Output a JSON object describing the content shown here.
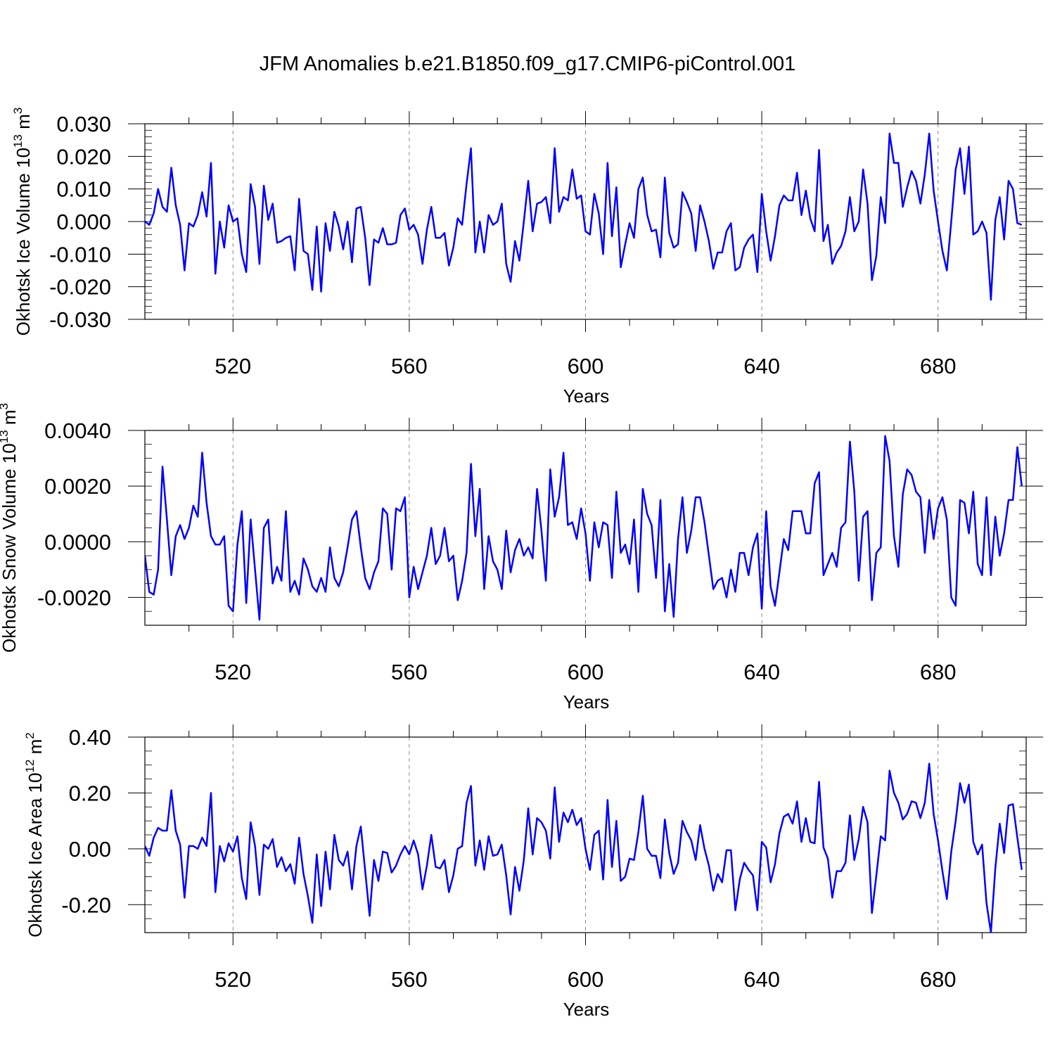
{
  "title": "JFM Anomalies b.e21.B1850.f09_g17.CMIP6-piControl.001",
  "colors": {
    "line": "#0000ff",
    "frame": "#000000",
    "grid": "#888888"
  },
  "chart_data": [
    {
      "type": "line",
      "ylabel": "Okhotsk Ice Volume 10",
      "ylabel_sup": "13",
      "ylabel_unit": " m",
      "ylabel_unit_sup": "3",
      "xlabel": "Years",
      "xlim": [
        500,
        700
      ],
      "ylim": [
        -0.03,
        0.03
      ],
      "xticks": [
        520,
        560,
        600,
        640,
        680
      ],
      "xtick_labels": [
        "520",
        "560",
        "600",
        "640",
        "680"
      ],
      "yticks": [
        -0.03,
        -0.02,
        -0.01,
        0.0,
        0.01,
        0.02,
        0.03
      ],
      "ytick_labels": [
        "-0.030",
        "-0.020",
        "-0.010",
        "0.000",
        "0.010",
        "0.020",
        "0.030"
      ],
      "ystep": 0.002,
      "series": [
        {
          "x_start": 500,
          "x_step": 1,
          "values": [
            0.0,
            -0.001,
            0.0025,
            0.01,
            0.0045,
            0.003,
            0.0165,
            0.005,
            -0.001,
            -0.015,
            -0.0005,
            -0.0015,
            0.002,
            0.009,
            0.0015,
            0.018,
            -0.016,
            0.0,
            -0.008,
            0.005,
            0.0,
            0.001,
            -0.01,
            -0.0155,
            0.0115,
            0.0045,
            -0.013,
            0.011,
            0.0005,
            0.0055,
            -0.0065,
            -0.006,
            -0.005,
            -0.0045,
            -0.015,
            0.007,
            -0.009,
            -0.01,
            -0.021,
            -0.0015,
            -0.0215,
            -0.0005,
            -0.009,
            0.003,
            -0.0015,
            -0.0085,
            0.0,
            -0.0125,
            0.004,
            0.0045,
            -0.005,
            -0.0195,
            -0.0055,
            -0.0065,
            -0.002,
            -0.007,
            -0.007,
            -0.0065,
            0.002,
            0.004,
            -0.0025,
            -0.001,
            -0.004,
            -0.013,
            -0.0025,
            0.0045,
            -0.005,
            -0.005,
            -0.0035,
            -0.0135,
            -0.008,
            0.001,
            -0.001,
            0.0115,
            0.0225,
            -0.0095,
            0.0,
            -0.0095,
            0.002,
            -0.001,
            0.0,
            0.0055,
            -0.013,
            -0.0185,
            -0.006,
            -0.012,
            0.0,
            0.0125,
            -0.003,
            0.0055,
            0.006,
            0.0075,
            -0.0005,
            0.0225,
            0.003,
            0.0075,
            0.0065,
            0.016,
            0.007,
            0.008,
            -0.003,
            -0.004,
            0.0085,
            0.0025,
            -0.01,
            0.018,
            -0.0045,
            0.0105,
            -0.014,
            -0.007,
            -0.0005,
            -0.005,
            0.01,
            0.0135,
            0.002,
            -0.003,
            -0.0025,
            -0.011,
            0.0135,
            -0.0035,
            -0.008,
            -0.007,
            0.009,
            0.006,
            0.0025,
            -0.009,
            0.005,
            0.0,
            -0.006,
            -0.0145,
            -0.0095,
            -0.0095,
            -0.003,
            -0.0005,
            -0.015,
            -0.014,
            -0.008,
            -0.0055,
            -0.004,
            -0.0155,
            0.0085,
            -0.003,
            -0.012,
            -0.0045,
            0.005,
            0.008,
            0.0065,
            0.0065,
            0.015,
            0.002,
            0.0095,
            0.001,
            -0.003,
            0.022,
            -0.006,
            -0.001,
            -0.013,
            -0.0095,
            -0.0075,
            -0.003,
            0.0075,
            -0.003,
            0.0,
            0.016,
            0.0055,
            -0.018,
            -0.0105,
            0.0075,
            -0.0005,
            0.027,
            0.018,
            0.018,
            0.0045,
            0.0105,
            0.0155,
            0.0125,
            0.0055,
            0.0145,
            0.027,
            0.0095,
            0.0,
            -0.009,
            -0.015,
            0.0,
            0.016,
            0.0225,
            0.0085,
            0.023,
            -0.004,
            -0.003,
            0.0,
            -0.0035,
            -0.024,
            0.0005,
            0.0075,
            -0.0055,
            0.0125,
            0.01,
            -0.0005,
            -0.001
          ]
        }
      ]
    },
    {
      "type": "line",
      "ylabel": "Okhotsk Snow Volume 10",
      "ylabel_sup": "13",
      "ylabel_unit": " m",
      "ylabel_unit_sup": "3",
      "xlabel": "Years",
      "xlim": [
        500,
        700
      ],
      "ylim": [
        -0.003,
        0.004
      ],
      "xticks": [
        520,
        560,
        600,
        640,
        680
      ],
      "xtick_labels": [
        "520",
        "560",
        "600",
        "640",
        "680"
      ],
      "yticks": [
        -0.002,
        0.0,
        0.002,
        0.004
      ],
      "ytick_labels": [
        "-0.0020",
        "0.0000",
        "0.0020",
        "0.0040"
      ],
      "ystep": 0.0005,
      "series": [
        {
          "x_start": 500,
          "x_step": 1,
          "values": [
            -0.0005,
            -0.0018,
            -0.0019,
            -0.001,
            0.0027,
            0.0008,
            -0.0012,
            0.0002,
            0.0006,
            0.0001,
            0.0005,
            0.0013,
            0.0009,
            0.0032,
            0.0014,
            0.0002,
            -0.0001,
            -0.0001,
            0.0002,
            -0.0023,
            -0.0025,
            -0.0001,
            0.0011,
            -0.0022,
            0.0008,
            -0.001,
            -0.0028,
            0.0005,
            0.0008,
            -0.0015,
            -0.0009,
            -0.0014,
            0.0011,
            -0.0018,
            -0.0014,
            -0.0019,
            -0.0006,
            -0.001,
            -0.0016,
            -0.0018,
            -0.0013,
            -0.0018,
            -0.0002,
            -0.0013,
            -0.0016,
            -0.0011,
            -0.0002,
            0.0008,
            0.0011,
            -0.0002,
            -0.0013,
            -0.0017,
            -0.0011,
            -0.0007,
            0.0012,
            0.001,
            -0.001,
            0.0012,
            0.0011,
            0.0016,
            -0.002,
            -0.0009,
            -0.0017,
            -0.0011,
            -0.0005,
            0.0005,
            -0.0008,
            -0.0005,
            0.0005,
            -0.0007,
            -0.0005,
            -0.0021,
            -0.0014,
            -0.0004,
            0.0028,
            0.0002,
            0.0019,
            -0.0017,
            0.0002,
            -0.0007,
            -0.001,
            -0.0017,
            0.0004,
            -0.0011,
            -0.0003,
            0.0001,
            -0.0005,
            -0.0002,
            -0.0006,
            0.0019,
            0.0004,
            -0.0014,
            0.0026,
            0.0009,
            0.0016,
            0.0032,
            0.0006,
            0.0007,
            0.0001,
            0.0012,
            0.0003,
            -0.0014,
            0.0007,
            -0.0002,
            0.0007,
            0.0006,
            -0.0013,
            0.0018,
            -0.0004,
            -0.0001,
            -0.0008,
            0.0008,
            -0.0018,
            0.0019,
            0.001,
            0.0006,
            -0.0013,
            0.0015,
            -0.0025,
            -0.0008,
            -0.0027,
            0.0001,
            0.0016,
            -0.0004,
            0.0004,
            0.0016,
            0.0016,
            0.0007,
            -0.0005,
            -0.0017,
            -0.0014,
            -0.0013,
            -0.002,
            -0.001,
            -0.0018,
            -0.0004,
            -0.0004,
            -0.0012,
            -0.0002,
            0.0003,
            -0.0024,
            0.0011,
            -0.0016,
            -0.0023,
            -0.0011,
            0.0001,
            -0.0003,
            0.0011,
            0.0011,
            0.0011,
            0.0003,
            0.0003,
            0.0021,
            0.0025,
            -0.0012,
            -0.0008,
            -0.0004,
            -0.0009,
            0.0005,
            0.0007,
            0.0036,
            0.0018,
            -0.0014,
            0.0009,
            0.0011,
            -0.0021,
            -0.0004,
            -0.0002,
            0.0038,
            0.0029,
            0.0002,
            -0.0009,
            0.0017,
            0.0026,
            0.0024,
            0.0018,
            0.0016,
            -0.0004,
            0.0015,
            0.0001,
            0.0012,
            0.0016,
            0.0008,
            -0.002,
            -0.0023,
            0.0015,
            0.0014,
            0.0003,
            0.0018,
            -0.0008,
            -0.0012,
            0.0016,
            -0.0012,
            0.0009,
            -0.0005,
            0.0003,
            0.0015,
            0.0015,
            0.0034,
            0.002
          ]
        }
      ]
    },
    {
      "type": "line",
      "ylabel": "Okhotsk Ice Area 10",
      "ylabel_sup": "12",
      "ylabel_unit": " m",
      "ylabel_unit_sup": "2",
      "xlabel": "Years",
      "xlim": [
        500,
        700
      ],
      "ylim": [
        -0.3,
        0.4
      ],
      "xticks": [
        520,
        560,
        600,
        640,
        680
      ],
      "xtick_labels": [
        "520",
        "560",
        "600",
        "640",
        "680"
      ],
      "yticks": [
        -0.2,
        0.0,
        0.2,
        0.4
      ],
      "ytick_labels": [
        "-0.20",
        "0.00",
        "0.20",
        "0.40"
      ],
      "ystep": 0.05,
      "series": [
        {
          "x_start": 500,
          "x_step": 1,
          "values": [
            0.01,
            -0.025,
            0.04,
            0.075,
            0.065,
            0.065,
            0.21,
            0.065,
            0.015,
            -0.175,
            0.01,
            0.01,
            0.0,
            0.04,
            0.01,
            0.2,
            -0.155,
            0.01,
            -0.045,
            0.02,
            -0.01,
            0.045,
            -0.105,
            -0.18,
            0.095,
            0.01,
            -0.165,
            0.015,
            0.0,
            0.035,
            -0.065,
            -0.03,
            -0.08,
            -0.055,
            -0.125,
            0.04,
            -0.09,
            -0.17,
            -0.265,
            -0.02,
            -0.205,
            -0.01,
            -0.145,
            0.05,
            -0.04,
            -0.06,
            -0.01,
            -0.145,
            0.01,
            0.08,
            -0.08,
            -0.24,
            -0.04,
            -0.115,
            -0.01,
            -0.015,
            -0.085,
            -0.06,
            -0.02,
            0.01,
            -0.02,
            0.03,
            -0.02,
            -0.145,
            -0.06,
            0.05,
            -0.065,
            -0.07,
            -0.04,
            -0.155,
            -0.095,
            0.0,
            0.01,
            0.165,
            0.225,
            -0.06,
            0.03,
            -0.075,
            0.045,
            -0.025,
            -0.02,
            0.015,
            -0.095,
            -0.235,
            -0.065,
            -0.15,
            -0.04,
            0.145,
            -0.02,
            0.11,
            0.095,
            0.065,
            -0.035,
            0.22,
            0.025,
            0.13,
            0.095,
            0.14,
            0.085,
            0.11,
            0.0,
            -0.075,
            0.05,
            0.065,
            -0.11,
            0.175,
            -0.065,
            0.1,
            -0.115,
            -0.1,
            -0.035,
            -0.04,
            0.06,
            0.19,
            0.0,
            -0.025,
            -0.025,
            -0.105,
            0.105,
            -0.015,
            -0.09,
            -0.05,
            0.1,
            0.06,
            0.03,
            -0.04,
            0.085,
            0.0,
            -0.06,
            -0.15,
            -0.09,
            -0.12,
            -0.005,
            -0.005,
            -0.22,
            -0.11,
            -0.05,
            -0.075,
            -0.095,
            -0.22,
            0.025,
            0.005,
            -0.12,
            -0.055,
            0.055,
            0.115,
            0.125,
            0.09,
            0.17,
            0.025,
            0.11,
            0.025,
            0.02,
            0.24,
            0.005,
            -0.035,
            -0.175,
            -0.08,
            -0.08,
            -0.05,
            0.12,
            -0.04,
            0.035,
            0.15,
            0.095,
            -0.23,
            -0.095,
            0.045,
            0.03,
            0.28,
            0.2,
            0.165,
            0.105,
            0.125,
            0.17,
            0.165,
            0.11,
            0.165,
            0.305,
            0.125,
            0.03,
            -0.08,
            -0.18,
            -0.01,
            0.1,
            0.235,
            0.165,
            0.23,
            0.025,
            -0.02,
            0.015,
            -0.195,
            -0.3,
            -0.07,
            0.09,
            -0.015,
            0.155,
            0.16,
            0.04,
            -0.075
          ]
        }
      ]
    }
  ]
}
